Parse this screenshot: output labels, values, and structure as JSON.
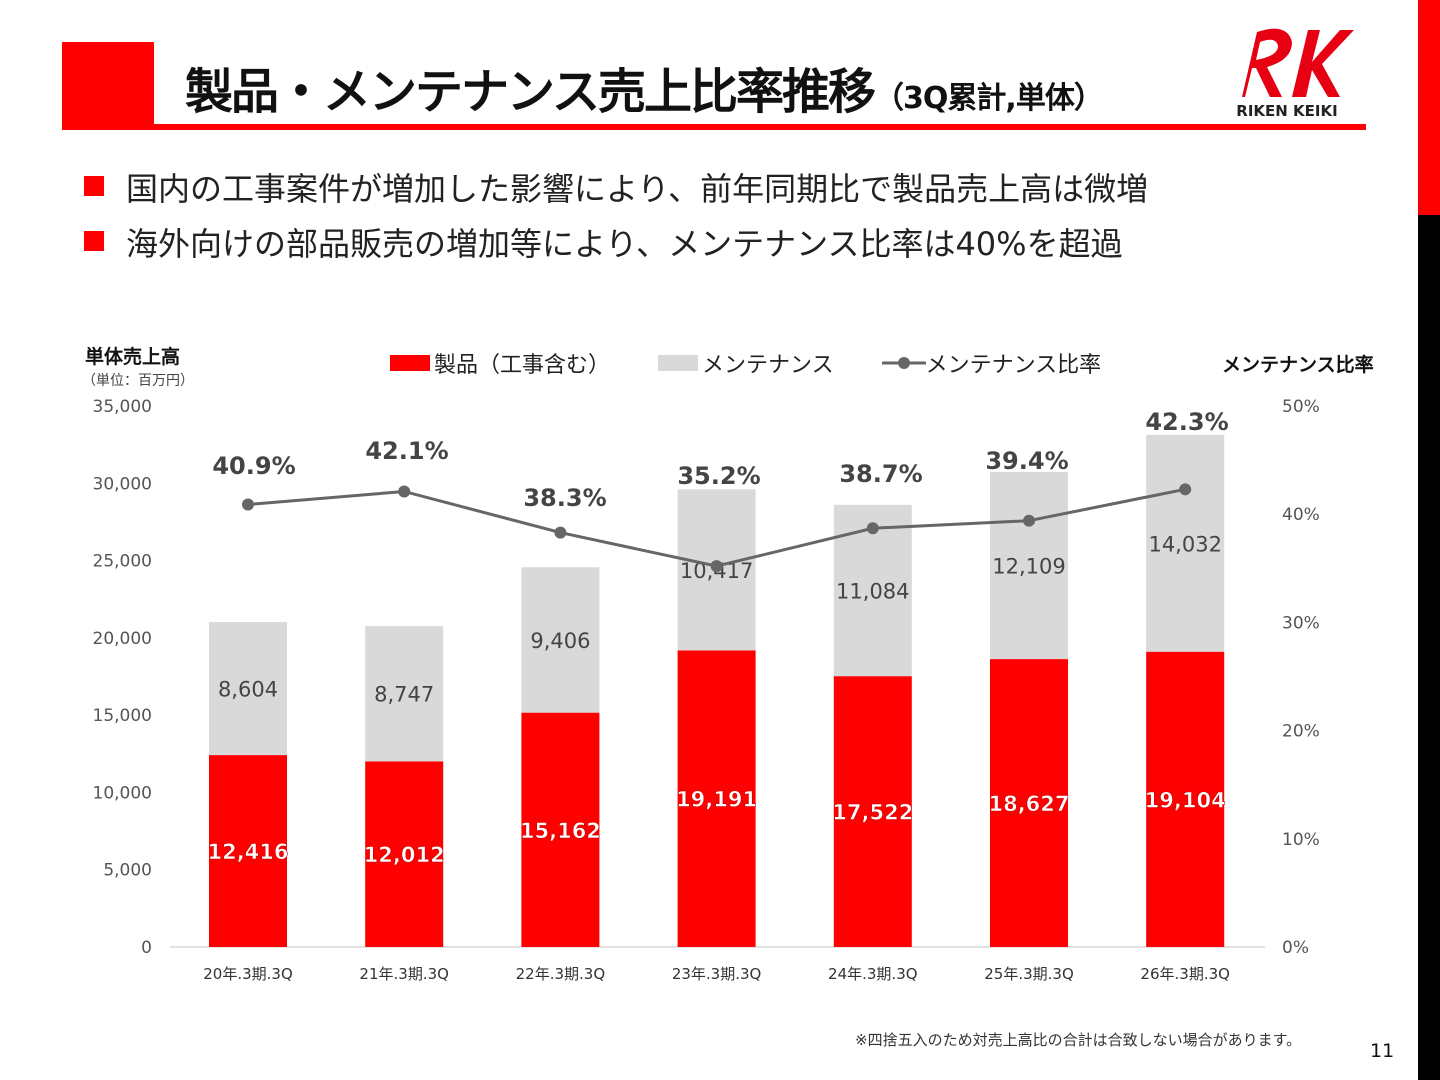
{
  "header": {
    "title": "製品・メンテナンス売上比率推移",
    "subtitle": "（3Q累計,単体）",
    "logo_text": "RIKEN KEIKI"
  },
  "bullets": [
    "国内の工事案件が増加した影響により、前年同期比で製品売上高は微増",
    "海外向けの部品販売の増加等により、メンテナンス比率は40%を超過"
  ],
  "colors": {
    "accent": "#ff0000",
    "product": "#ff0000",
    "maintenance": "#d9d9d9",
    "ratio_line": "#666666"
  },
  "chart_data": {
    "type": "bar",
    "stacked": true,
    "y_left_label": "単体売上高",
    "y_left_unit": "（単位：百万円）",
    "y_right_label": "メンテナンス比率",
    "categories": [
      "20年.3期.3Q",
      "21年.3期.3Q",
      "22年.3期.3Q",
      "23年.3期.3Q",
      "24年.3期.3Q",
      "25年.3期.3Q",
      "26年.3期.3Q"
    ],
    "series": [
      {
        "name": "製品（工事含む）",
        "type": "bar",
        "axis": "left",
        "values": [
          12416,
          12012,
          15162,
          19191,
          17522,
          18627,
          19104
        ],
        "labels": [
          "12,416",
          "12,012",
          "15,162",
          "19,191",
          "17,522",
          "18,627",
          "19,104"
        ]
      },
      {
        "name": "メンテナンス",
        "type": "bar",
        "axis": "left",
        "values": [
          8604,
          8747,
          9406,
          10417,
          11084,
          12109,
          14032
        ],
        "labels": [
          "8,604",
          "8,747",
          "9,406",
          "10,417",
          "11,084",
          "12,109",
          "14,032"
        ]
      },
      {
        "name": "メンテナンス比率",
        "type": "line",
        "axis": "right",
        "values": [
          40.9,
          42.1,
          38.3,
          35.2,
          38.7,
          39.4,
          42.3
        ],
        "labels": [
          "40.9%",
          "42.1%",
          "38.3%",
          "35.2%",
          "38.7%",
          "39.4%",
          "42.3%"
        ]
      }
    ],
    "ylim_left": [
      0,
      35000
    ],
    "ylim_right": [
      0,
      50
    ],
    "yticks_left": [
      "0",
      "5,000",
      "10,000",
      "15,000",
      "20,000",
      "25,000",
      "30,000",
      "35,000"
    ],
    "yticks_right": [
      "0%",
      "10%",
      "20%",
      "30%",
      "40%",
      "50%"
    ],
    "legend": "top",
    "grid": false
  },
  "footer": {
    "note": "※四捨五入のため対売上高比の合計は合致しない場合があります。",
    "page": "11"
  }
}
